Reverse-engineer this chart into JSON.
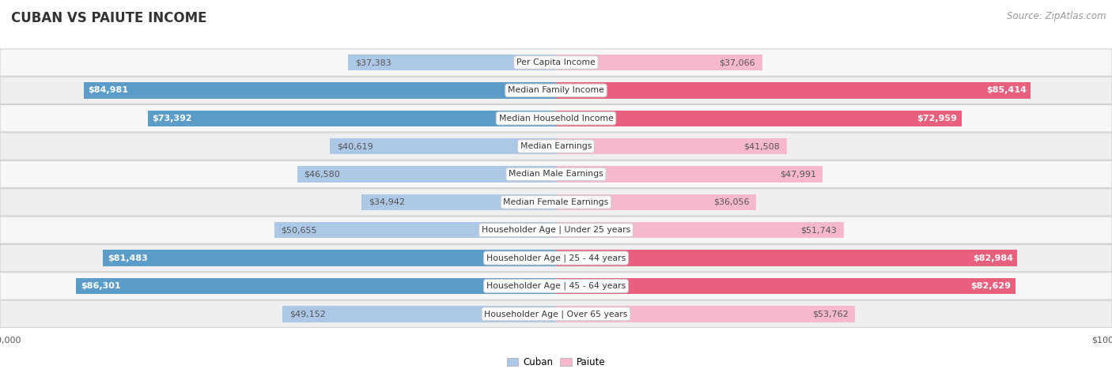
{
  "title": "CUBAN VS PAIUTE INCOME",
  "source": "Source: ZipAtlas.com",
  "categories": [
    "Per Capita Income",
    "Median Family Income",
    "Median Household Income",
    "Median Earnings",
    "Median Male Earnings",
    "Median Female Earnings",
    "Householder Age | Under 25 years",
    "Householder Age | 25 - 44 years",
    "Householder Age | 45 - 64 years",
    "Householder Age | Over 65 years"
  ],
  "cuban_values": [
    37383,
    84981,
    73392,
    40619,
    46580,
    34942,
    50655,
    81483,
    86301,
    49152
  ],
  "paiute_values": [
    37066,
    85414,
    72959,
    41508,
    47991,
    36056,
    51743,
    82984,
    82629,
    53762
  ],
  "cuban_labels": [
    "$37,383",
    "$84,981",
    "$73,392",
    "$40,619",
    "$46,580",
    "$34,942",
    "$50,655",
    "$81,483",
    "$86,301",
    "$49,152"
  ],
  "paiute_labels": [
    "$37,066",
    "$85,414",
    "$72,959",
    "$41,508",
    "$47,991",
    "$36,056",
    "$51,743",
    "$82,984",
    "$82,629",
    "$53,762"
  ],
  "max_value": 100000,
  "cuban_color_light": "#adc8e6",
  "cuban_color_dark": "#5b9dc8",
  "paiute_color_light": "#f5b8cc",
  "paiute_color_dark": "#e8607e",
  "bar_height": 0.58,
  "label_inside_threshold": 60000,
  "background_color": "#ffffff",
  "row_bg_even": "#f7f7f7",
  "row_bg_odd": "#efefef",
  "title_fontsize": 12,
  "source_fontsize": 8.5,
  "label_fontsize": 8,
  "category_fontsize": 7.8,
  "axis_fontsize": 8
}
